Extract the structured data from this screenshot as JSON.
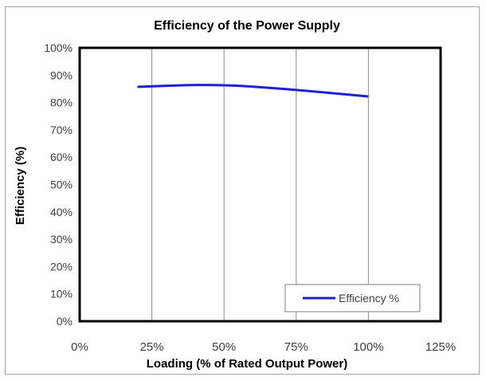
{
  "chart_data": {
    "type": "line",
    "title": "Efficiency of the Power Supply",
    "xlabel": "Loading (% of Rated Output Power)",
    "ylabel": "Efficiency (%)",
    "xlim": [
      0,
      125
    ],
    "ylim": [
      0,
      100
    ],
    "x_ticks": [
      0,
      25,
      50,
      75,
      100,
      125
    ],
    "x_tick_labels": [
      "0%",
      "25%",
      "50%",
      "75%",
      "100%",
      "125%"
    ],
    "y_ticks": [
      0,
      10,
      20,
      30,
      40,
      50,
      60,
      70,
      80,
      90,
      100
    ],
    "y_tick_labels": [
      "0%",
      "10%",
      "20%",
      "30%",
      "40%",
      "50%",
      "60%",
      "70%",
      "80%",
      "90%",
      "100%"
    ],
    "grid": "vertical",
    "legend_position": "bottom-right",
    "series": [
      {
        "name": "Efficiency %",
        "color": "#1f1fd6",
        "x": [
          20,
          30,
          40,
          50,
          60,
          75,
          100
        ],
        "y": [
          85.7,
          86.1,
          86.4,
          86.3,
          85.8,
          84.6,
          82.2
        ]
      }
    ]
  }
}
